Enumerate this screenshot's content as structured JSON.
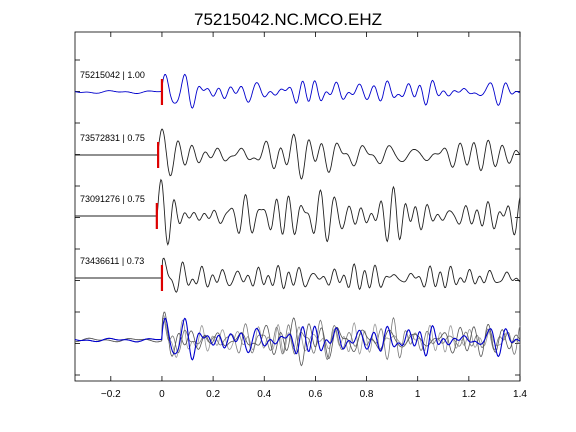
{
  "chart_data": {
    "type": "line",
    "title": "75215042.NC.MCO.EHZ",
    "xlabel": "",
    "ylabel": "",
    "xlim": [
      -0.34,
      1.4
    ],
    "x_ticks": [
      -0.2,
      0,
      0.2,
      0.4,
      0.6,
      0.8,
      1,
      1.2,
      1.4
    ],
    "x_tick_labels": [
      "−0.2",
      "0",
      "0.2",
      "0.4",
      "0.6",
      "0.8",
      "1",
      "1.2",
      "1.4"
    ],
    "grid": false,
    "pick_time": 0.0,
    "pick_color": "#dd0000",
    "series": [
      {
        "name": "75215042 | 1.00",
        "color": "#0000cc",
        "pick_offset": 0.0,
        "pre_event": "noise"
      },
      {
        "name": "73572831 | 0.75",
        "color": "#222222",
        "pick_offset": -0.015,
        "pre_event": "flat"
      },
      {
        "name": "73091276 | 0.75",
        "color": "#222222",
        "pick_offset": -0.02,
        "pre_event": "flat"
      },
      {
        "name": "73436611 | 0.73",
        "color": "#222222",
        "pick_offset": 0.0,
        "pre_event": "flat"
      }
    ],
    "overlay": {
      "colors": [
        "#0000cc",
        "#555555",
        "#777777",
        "#999999"
      ]
    }
  }
}
